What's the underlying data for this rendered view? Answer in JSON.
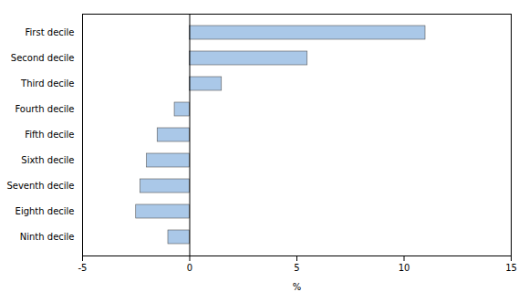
{
  "chart_data": {
    "type": "bar",
    "orientation": "horizontal",
    "categories": [
      "First decile",
      "Second decile",
      "Third decile",
      "Fourth decile",
      "Fifth decile",
      "Sixth decile",
      "Seventh decile",
      "Eighth decile",
      "Ninth decile"
    ],
    "values": [
      11.0,
      5.5,
      1.5,
      -0.7,
      -1.5,
      -2.0,
      -2.3,
      -2.5,
      -1.0
    ],
    "color": "#aac8e8",
    "xlabel": "%",
    "xlim": [
      -5,
      15
    ],
    "xticks": [
      -5,
      0,
      5,
      10,
      15
    ],
    "grid": false
  }
}
